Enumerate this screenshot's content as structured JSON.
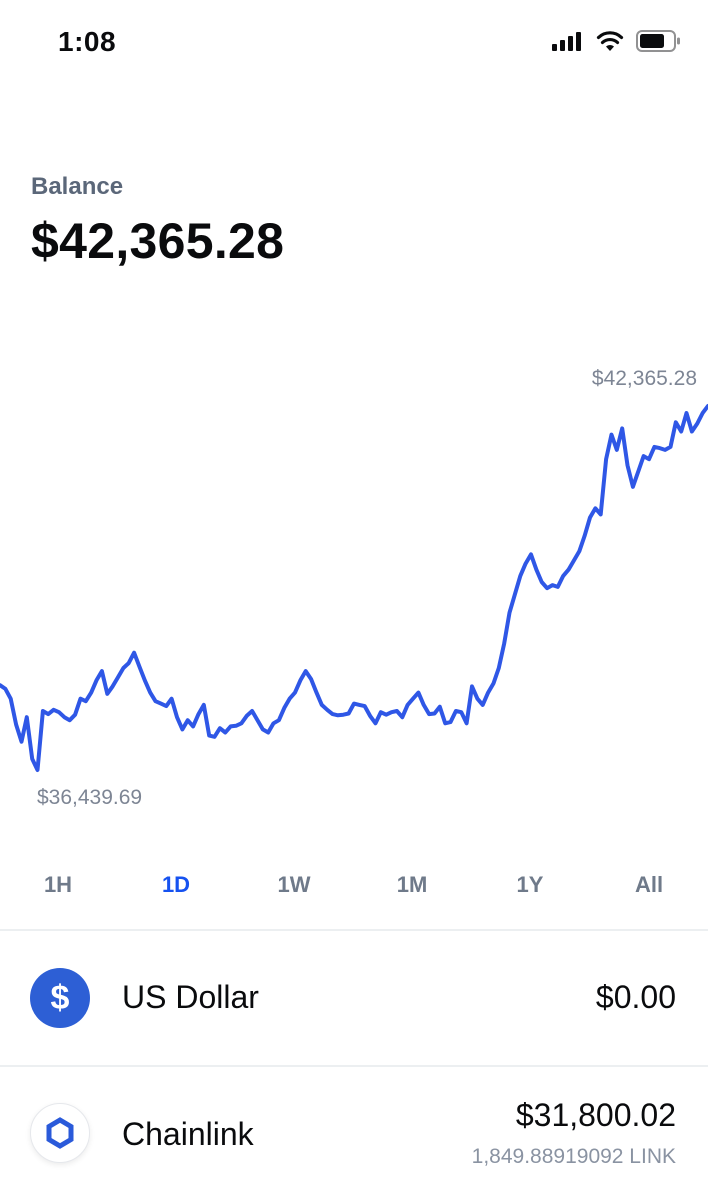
{
  "status": {
    "time": "1:08"
  },
  "balance": {
    "label": "Balance",
    "value": "$42,365.28"
  },
  "chart_data": {
    "type": "line",
    "max_label": "$42,365.28",
    "min_label": "$36,439.69",
    "color": "#2f57e6",
    "min": 36439.69,
    "max": 42365.28,
    "series": [
      {
        "values": [
          37820,
          37760,
          37600,
          37180,
          36900,
          37300,
          36620,
          36440,
          37400,
          37350,
          37420,
          37380,
          37300,
          37250,
          37340,
          37600,
          37560,
          37700,
          37900,
          38050,
          37680,
          37800,
          37950,
          38100,
          38180,
          38350,
          38120,
          37900,
          37700,
          37560,
          37520,
          37480,
          37600,
          37300,
          37100,
          37250,
          37150,
          37350,
          37500,
          37000,
          36980,
          37120,
          37050,
          37150,
          37160,
          37200,
          37320,
          37400,
          37250,
          37100,
          37050,
          37200,
          37250,
          37450,
          37600,
          37700,
          37900,
          38050,
          37920,
          37700,
          37500,
          37420,
          37350,
          37330,
          37340,
          37360,
          37520,
          37500,
          37480,
          37320,
          37200,
          37380,
          37340,
          37380,
          37400,
          37300,
          37500,
          37600,
          37700,
          37500,
          37350,
          37360,
          37470,
          37200,
          37220,
          37400,
          37380,
          37200,
          37800,
          37600,
          37500,
          37700,
          37850,
          38100,
          38500,
          39000,
          39300,
          39600,
          39800,
          39950,
          39700,
          39500,
          39400,
          39450,
          39420,
          39600,
          39700,
          39850,
          40000,
          40250,
          40550,
          40700,
          40600,
          41500,
          41900,
          41650,
          42000,
          41400,
          41050,
          41300,
          41550,
          41500,
          41700,
          41680,
          41650,
          41700,
          42100,
          41950,
          42250,
          41950,
          42080,
          42250,
          42365
        ]
      }
    ]
  },
  "ranges": [
    {
      "label": "1H",
      "active": false
    },
    {
      "label": "1D",
      "active": true
    },
    {
      "label": "1W",
      "active": false
    },
    {
      "label": "1M",
      "active": false
    },
    {
      "label": "1Y",
      "active": false
    },
    {
      "label": "All",
      "active": false
    }
  ],
  "assets": [
    {
      "name": "US Dollar",
      "amount": "$0.00",
      "sub": "",
      "icon": "dollar-icon",
      "icon_glyph": "$"
    },
    {
      "name": "Chainlink",
      "amount": "$31,800.02",
      "sub": "1,849.88919092 LINK",
      "icon": "chainlink-icon"
    }
  ]
}
